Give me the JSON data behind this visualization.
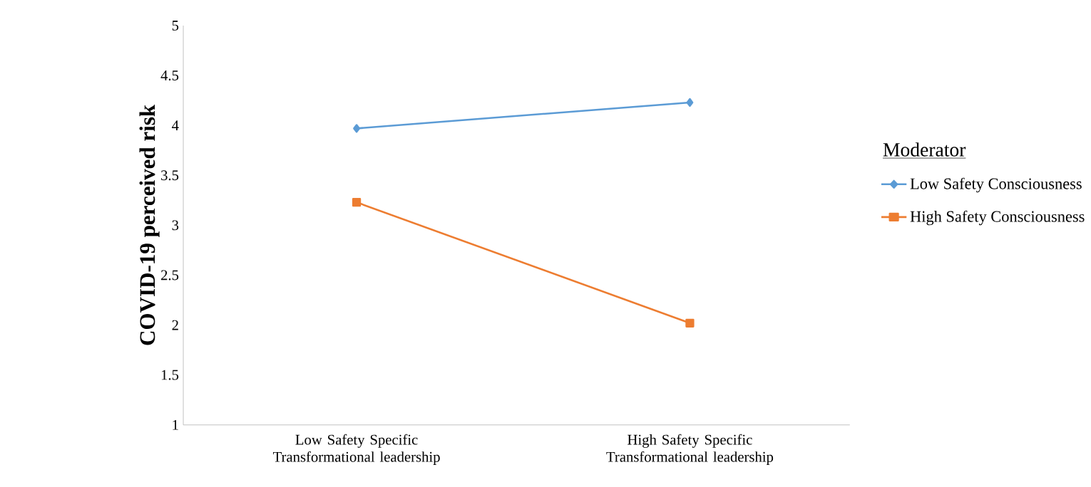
{
  "chart_data": {
    "type": "line",
    "ylabel": "COVID-19 perceived risk",
    "legend_title": "Moderator",
    "categories": [
      "Low Safety Specific Transformational leadership",
      "High Safety Specific Transformational leadership"
    ],
    "series": [
      {
        "name": "Low Safety Consciousness",
        "color": "#5b9bd5",
        "values": [
          3.97,
          4.23
        ],
        "marker": "diamond"
      },
      {
        "name": "High Safety Consciousness",
        "color": "#ed7d31",
        "values": [
          3.23,
          2.02
        ],
        "marker": "square"
      }
    ],
    "ylim": [
      1,
      5
    ],
    "yticks": [
      1,
      1.5,
      2,
      2.5,
      3,
      3.5,
      4,
      4.5,
      5
    ],
    "grid": false,
    "legend": "right"
  }
}
